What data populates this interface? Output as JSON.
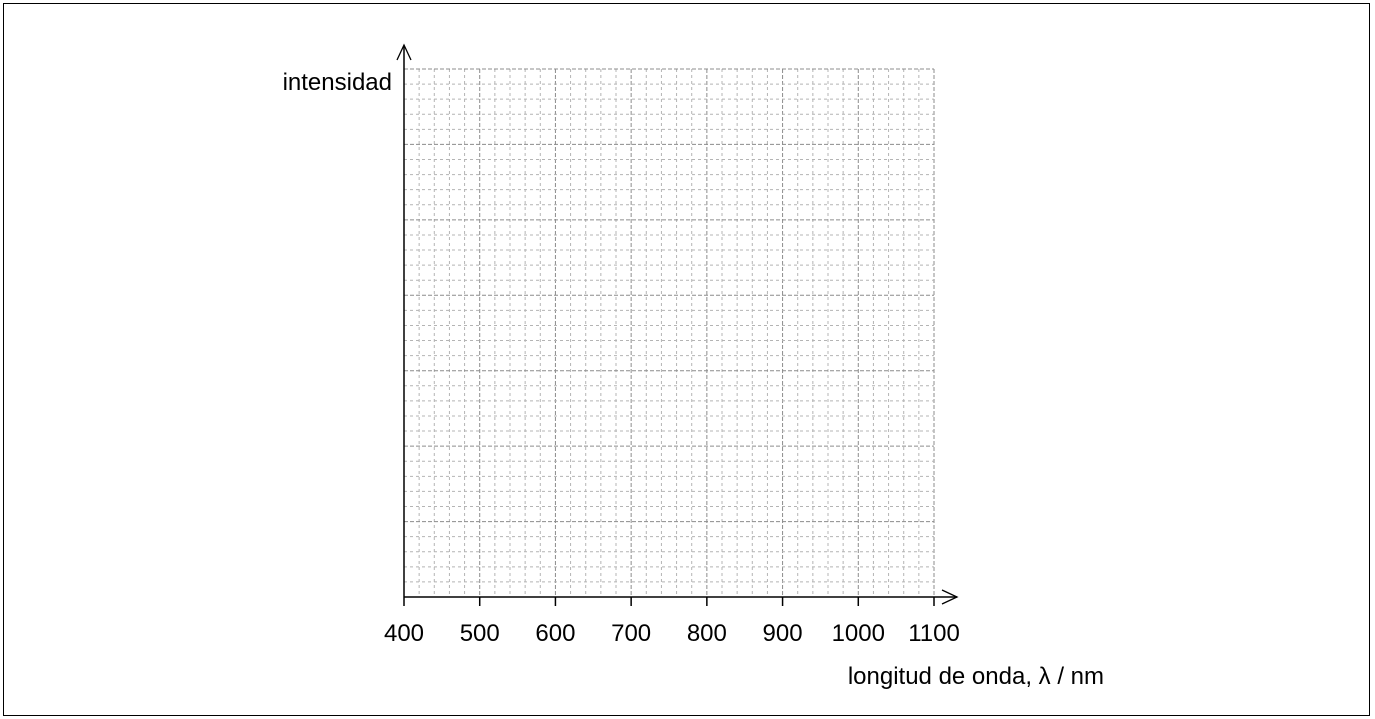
{
  "chart_data": {
    "type": "line",
    "title": "",
    "xlabel": "longitud de onda, λ / nm",
    "ylabel": "intensidad",
    "xlim": [
      400,
      1100
    ],
    "x_ticks": [
      400,
      500,
      600,
      700,
      800,
      900,
      1000,
      1100
    ],
    "x_tick_labels": [
      "400",
      "500",
      "600",
      "700",
      "800",
      "900",
      "1000",
      "1100"
    ],
    "x_minor_step": 20,
    "y_minor_divisions": 35,
    "y_major_every": 5,
    "y_tick_labels": [],
    "series": [],
    "grid": true,
    "legend": "none"
  },
  "colors": {
    "axis": "#000000",
    "grid_major": "#8c8c8c",
    "grid_minor": "#b4b4b4"
  }
}
